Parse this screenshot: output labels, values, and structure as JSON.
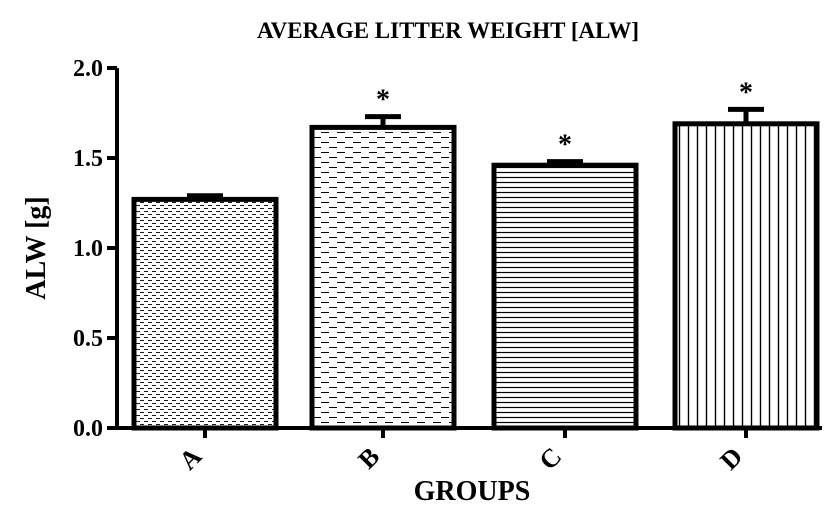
{
  "chart_data": {
    "type": "bar",
    "title": "AVERAGE LITTER WEIGHT [ALW]",
    "xlabel": "GROUPS",
    "ylabel": "ALW [g]",
    "categories": [
      "A",
      "B",
      "C",
      "D"
    ],
    "values": [
      1.27,
      1.67,
      1.46,
      1.69
    ],
    "error": [
      0.02,
      0.06,
      0.02,
      0.08
    ],
    "significance": [
      "",
      "*",
      "*",
      "*"
    ],
    "ylim": [
      0,
      2.0
    ],
    "yticks": [
      "0.0",
      "0.5",
      "1.0",
      "1.5",
      "2.0"
    ],
    "patterns": [
      "dots",
      "dashes",
      "horizontal-lines",
      "vertical-lines"
    ],
    "grid": false
  }
}
